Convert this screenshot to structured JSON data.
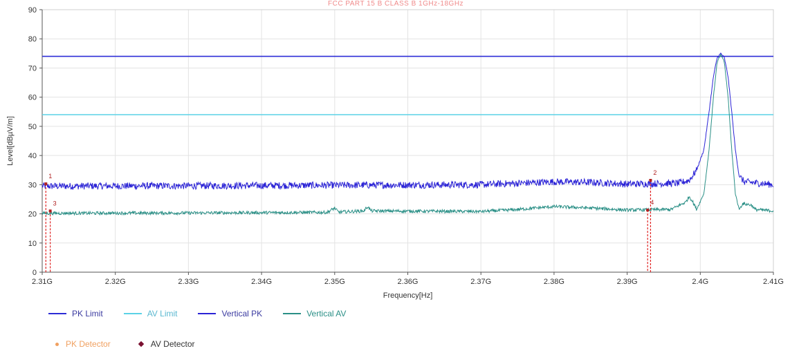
{
  "watermark_text": "FCC PART 15 B CLASS B 1GHz-18GHz",
  "chart_data": {
    "type": "line",
    "title": "",
    "xlabel": "Frequency[Hz]",
    "ylabel": "Level[dBµV/m]",
    "xlim": [
      2.31,
      2.41
    ],
    "ylim": [
      0,
      90
    ],
    "x_unit": "GHz",
    "xticks": [
      2.31,
      2.32,
      2.33,
      2.34,
      2.35,
      2.36,
      2.37,
      2.38,
      2.39,
      2.4,
      2.41
    ],
    "xtick_labels": [
      "2.31G",
      "2.32G",
      "2.33G",
      "2.34G",
      "2.35G",
      "2.36G",
      "2.37G",
      "2.38G",
      "2.39G",
      "2.4G",
      "2.41G"
    ],
    "yticks": [
      0,
      10,
      20,
      30,
      40,
      50,
      60,
      70,
      80,
      90
    ],
    "grid": true,
    "legend_position": "bottom",
    "limits": [
      {
        "name": "PK Limit",
        "value": 74,
        "color": "#2b2bd6"
      },
      {
        "name": "AV Limit",
        "value": 54,
        "color": "#5ad2e6"
      }
    ],
    "series": [
      {
        "name": "Vertical PK",
        "color": "#2a22d6",
        "points": [
          [
            2.31,
            29.5
          ],
          [
            2.33,
            29.6
          ],
          [
            2.35,
            29.8
          ],
          [
            2.37,
            30.0
          ],
          [
            2.375,
            30.5
          ],
          [
            2.38,
            31.0
          ],
          [
            2.385,
            30.8
          ],
          [
            2.39,
            30.2
          ],
          [
            2.397,
            30.5
          ],
          [
            2.3985,
            31.5
          ],
          [
            2.3995,
            35.0
          ],
          [
            2.4005,
            42.0
          ],
          [
            2.4012,
            55.0
          ],
          [
            2.4018,
            67.0
          ],
          [
            2.4023,
            73.5
          ],
          [
            2.4028,
            75.0
          ],
          [
            2.4033,
            73.5
          ],
          [
            2.4038,
            67.0
          ],
          [
            2.4043,
            55.0
          ],
          [
            2.4048,
            42.0
          ],
          [
            2.4053,
            33.0
          ],
          [
            2.406,
            31.0
          ],
          [
            2.41,
            30.0
          ]
        ]
      },
      {
        "name": "Vertical AV",
        "color": "#2a8f86",
        "points": [
          [
            2.31,
            20.2
          ],
          [
            2.33,
            20.3
          ],
          [
            2.349,
            20.5
          ],
          [
            2.35,
            22.0
          ],
          [
            2.3505,
            20.6
          ],
          [
            2.354,
            21.0
          ],
          [
            2.3545,
            22.5
          ],
          [
            2.355,
            21.0
          ],
          [
            2.37,
            20.8
          ],
          [
            2.375,
            21.5
          ],
          [
            2.38,
            22.5
          ],
          [
            2.385,
            22.0
          ],
          [
            2.39,
            21.3
          ],
          [
            2.396,
            21.5
          ],
          [
            2.398,
            24.0
          ],
          [
            2.3985,
            26.0
          ],
          [
            2.399,
            24.0
          ],
          [
            2.3995,
            21.5
          ],
          [
            2.4005,
            27.0
          ],
          [
            2.4012,
            42.0
          ],
          [
            2.4018,
            60.0
          ],
          [
            2.4023,
            72.0
          ],
          [
            2.4028,
            74.5
          ],
          [
            2.4033,
            72.0
          ],
          [
            2.4038,
            60.0
          ],
          [
            2.4043,
            42.0
          ],
          [
            2.4048,
            27.0
          ],
          [
            2.4053,
            21.5
          ],
          [
            2.4058,
            23.5
          ],
          [
            2.407,
            23.0
          ],
          [
            2.4075,
            21.5
          ],
          [
            2.41,
            21.0
          ]
        ]
      }
    ],
    "markers": [
      {
        "label": "1",
        "x": 2.3105,
        "y": 30.3,
        "type": "PK Detector"
      },
      {
        "label": "3",
        "x": 2.3111,
        "y": 21.0,
        "type": "AV Detector"
      },
      {
        "label": "2",
        "x": 2.3932,
        "y": 31.5,
        "type": "PK Detector"
      },
      {
        "label": "4",
        "x": 2.3928,
        "y": 21.3,
        "type": "AV Detector"
      }
    ]
  },
  "legend": {
    "pk_limit": "PK Limit",
    "av_limit": "AV Limit",
    "vertical_pk": "Vertical PK",
    "vertical_av": "Vertical AV",
    "pk_detector": "PK Detector",
    "av_detector": "AV Detector"
  },
  "legend_colors": {
    "pk_limit": "#2b2bd6",
    "av_limit": "#5ad2e6",
    "vertical_pk": "#2a22d6",
    "vertical_av": "#2a8f86",
    "pk_detector": "#f0a060",
    "av_detector": "#7a1030"
  }
}
